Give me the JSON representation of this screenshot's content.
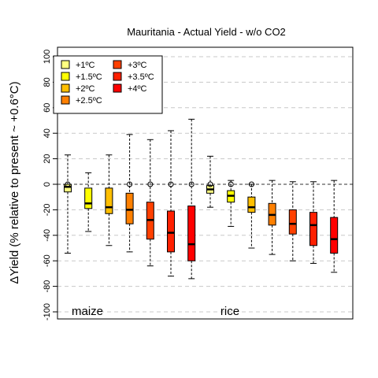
{
  "chart_data": {
    "type": "box",
    "title": "Mauritania - Actual Yield - w/o CO2",
    "ylabel": "ΔYield (% relative to present ~ +0.6°C)",
    "ylim": [
      -105,
      105
    ],
    "yticks": [
      -100,
      -80,
      -60,
      -40,
      -20,
      0,
      20,
      40,
      60,
      80,
      100
    ],
    "grid": "horizontal dashed",
    "legend_position": "top-left",
    "legend": [
      {
        "label": "+1ºC",
        "color": "#FFFF80"
      },
      {
        "label": "+1.5ºC",
        "color": "#FFFF00"
      },
      {
        "label": "+2ºC",
        "color": "#FFBF00"
      },
      {
        "label": "+2.5ºC",
        "color": "#FF8000"
      },
      {
        "label": "+3ºC",
        "color": "#FF4000"
      },
      {
        "label": "+3.5ºC",
        "color": "#FF2000"
      },
      {
        "label": "+4ºC",
        "color": "#FF0000"
      }
    ],
    "groups": [
      {
        "name": "maize",
        "boxes": [
          {
            "level": "+1ºC",
            "min": -54,
            "q1": -6,
            "median": -2,
            "q3": 0,
            "max": 23,
            "outliers": [
              0
            ]
          },
          {
            "level": "+1.5ºC",
            "min": -37,
            "q1": -19,
            "median": -15,
            "q3": -3,
            "max": 9,
            "outliers": []
          },
          {
            "level": "+2ºC",
            "min": -48,
            "q1": -23,
            "median": -18,
            "q3": -3,
            "max": 23,
            "outliers": []
          },
          {
            "level": "+2.5ºC",
            "min": -53,
            "q1": -31,
            "median": -20,
            "q3": -7,
            "max": 39,
            "outliers": [
              0
            ]
          },
          {
            "level": "+3ºC",
            "min": -64,
            "q1": -43,
            "median": -28,
            "q3": -14,
            "max": 35,
            "outliers": [
              0
            ]
          },
          {
            "level": "+3.5ºC",
            "min": -72,
            "q1": -53,
            "median": -38,
            "q3": -21,
            "max": 42,
            "outliers": [
              0
            ]
          },
          {
            "level": "+4ºC",
            "min": -74,
            "q1": -60,
            "median": -47,
            "q3": -17,
            "max": 51,
            "outliers": [
              0
            ]
          }
        ]
      },
      {
        "name": "rice",
        "boxes": [
          {
            "level": "+1ºC",
            "min": -18,
            "q1": -7,
            "median": -4,
            "q3": -1,
            "max": 22,
            "outliers": [
              0
            ]
          },
          {
            "level": "+1.5ºC",
            "min": -33,
            "q1": -14,
            "median": -9,
            "q3": -5,
            "max": 3,
            "outliers": [
              0
            ]
          },
          {
            "level": "+2ºC",
            "min": -50,
            "q1": -22,
            "median": -18,
            "q3": -10,
            "max": 0,
            "outliers": [
              0
            ]
          },
          {
            "level": "+2.5ºC",
            "min": -55,
            "q1": -32,
            "median": -24,
            "q3": -15,
            "max": 3,
            "outliers": []
          },
          {
            "level": "+3ºC",
            "min": -60,
            "q1": -39,
            "median": -31,
            "q3": -20,
            "max": 2,
            "outliers": []
          },
          {
            "level": "+3.5ºC",
            "min": -62,
            "q1": -48,
            "median": -32,
            "q3": -22,
            "max": 2,
            "outliers": []
          },
          {
            "level": "+4ºC",
            "min": -69,
            "q1": -54,
            "median": -43,
            "q3": -26,
            "max": 3,
            "outliers": []
          }
        ]
      }
    ]
  }
}
